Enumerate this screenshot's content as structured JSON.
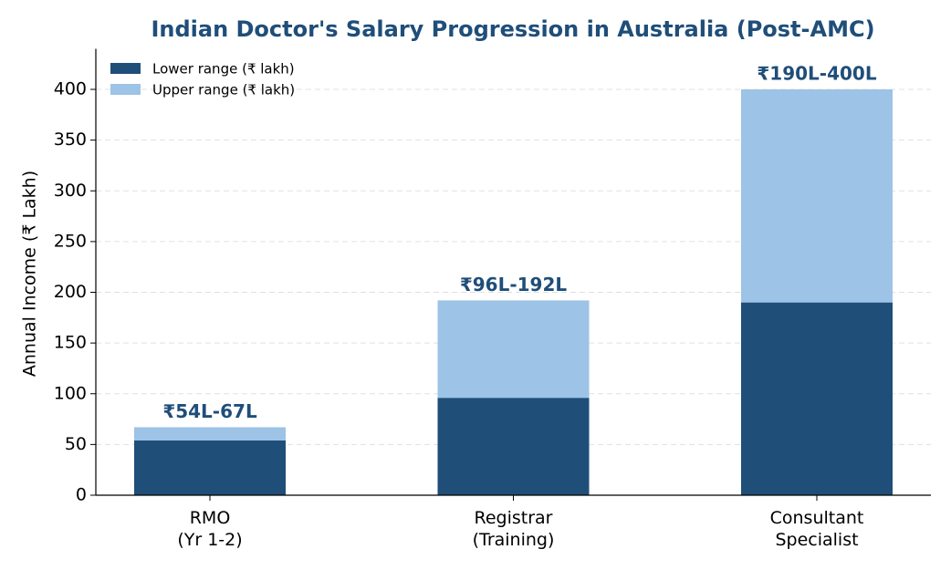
{
  "chart_data": {
    "type": "stacked_bar",
    "title": "Indian Doctor's Salary Progression in Australia (Post-AMC)",
    "ylabel": "Annual Income (₹ Lakh)",
    "categories": [
      "RMO\n(Yr 1-2)",
      "Registrar\n(Training)",
      "Consultant\nSpecialist"
    ],
    "series": [
      {
        "name": "Lower range (₹ lakh)",
        "color": "#1f4e79",
        "values": [
          54,
          96,
          190
        ]
      },
      {
        "name": "Upper range (₹ lakh)",
        "color": "#9dc3e6",
        "values": [
          13,
          96,
          210
        ]
      }
    ],
    "annotations": [
      "₹54L-67L",
      "₹96L-192L",
      "₹190L-400L"
    ],
    "ylim": [
      0,
      440
    ],
    "yticks": [
      0,
      50,
      100,
      150,
      200,
      250,
      300,
      350,
      400
    ],
    "grid": true,
    "legend": "upper left"
  }
}
